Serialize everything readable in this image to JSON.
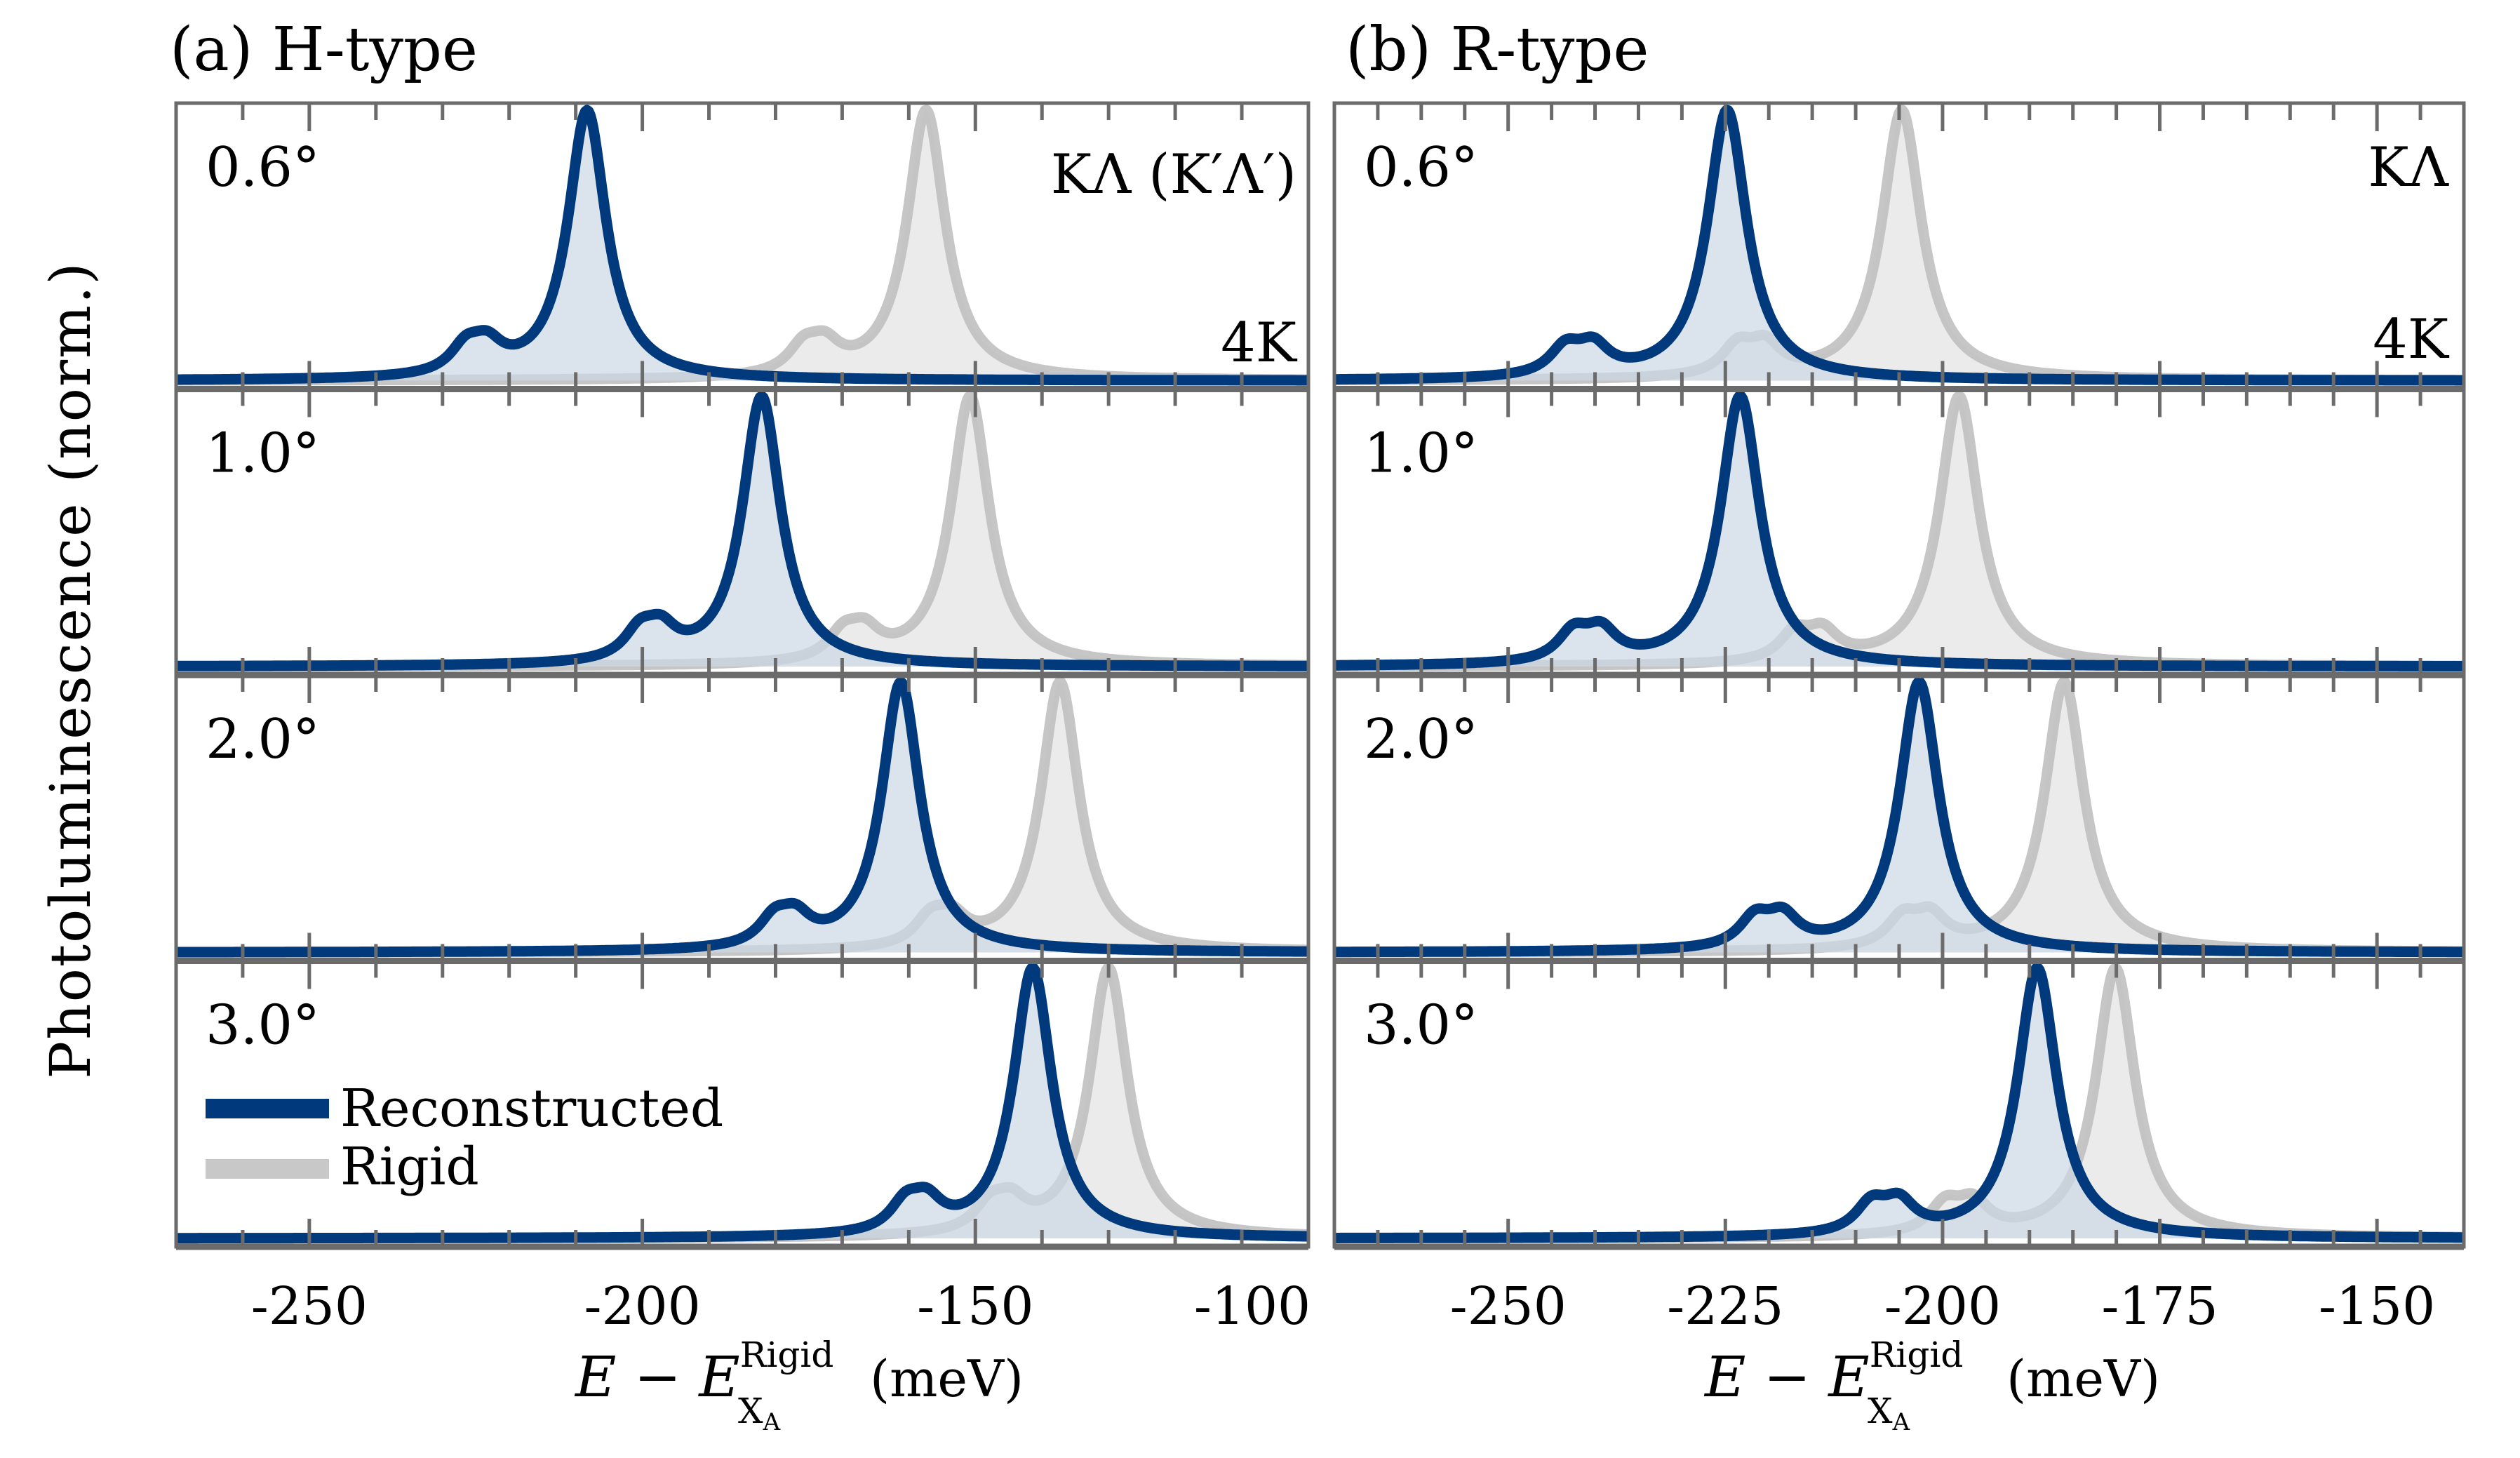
{
  "figure": {
    "ylabel": "Photoluminescence (norm.)",
    "xlabel": {
      "main": "E − E",
      "superscript": "Rigid",
      "subscript": "X",
      "subsubscript": "A",
      "unit": "(meV)"
    },
    "colors": {
      "reconstructed_line": "#003a7d",
      "reconstructed_fill": "#ccd8e5",
      "rigid_line": "#c0c0c0",
      "rigid_fill": "#e8e8e8",
      "frame": "#6b6b6b"
    },
    "legend": {
      "items": [
        {
          "label": "Reconstructed",
          "color": "#003a7d"
        },
        {
          "label": "Rigid",
          "color": "#c8c8c8"
        }
      ],
      "placement": "bottom-left of panel (a), 3.0° row"
    }
  },
  "chart_data": [
    {
      "type": "line",
      "panel": "a",
      "title": "(a) H-type",
      "corner_label_top": "KΛ (K′Λ′)",
      "corner_label_bottom": "4K",
      "xlabel": "E − E_XA^Rigid (meV)",
      "ylabel": "Photoluminescence (norm.)",
      "xlim": [
        -270,
        -100
      ],
      "ylim": [
        0,
        1
      ],
      "xticks_major": [
        -250,
        -200,
        -150,
        -100
      ],
      "xtick_labels": [
        "-250",
        "-200",
        "-150",
        "-100"
      ],
      "xticks_minor_step": 10,
      "grid": false,
      "rows": [
        {
          "angle": "0.6°",
          "reconstructed": {
            "peak": -208.3,
            "shoulder": -224.9,
            "shoulder_height": 0.17
          },
          "rigid": {
            "peak": -157.4,
            "shoulder": -174.2,
            "shoulder_height": 0.17
          }
        },
        {
          "angle": "1.0°",
          "reconstructed": {
            "peak": -182.1,
            "shoulder": -198.8,
            "shoulder_height": 0.18
          },
          "rigid": {
            "peak": -150.8,
            "shoulder": -168.2,
            "shoulder_height": 0.17
          }
        },
        {
          "angle": "2.0°",
          "reconstructed": {
            "peak": -161.2,
            "shoulder": -178.6,
            "shoulder_height": 0.17
          },
          "rigid": {
            "peak": -137.3,
            "shoulder": -155.2,
            "shoulder_height": 0.17
          }
        },
        {
          "angle": "3.0°",
          "reconstructed": {
            "peak": -141.4,
            "shoulder": -158.9,
            "shoulder_height": 0.18
          },
          "rigid": {
            "peak": -130.0,
            "shoulder": -146.2,
            "shoulder_height": 0.17
          }
        }
      ],
      "fwhm_meV": 7
    },
    {
      "type": "line",
      "panel": "b",
      "title": "(b) R-type",
      "corner_label_top": "KΛ",
      "corner_label_bottom": "4K",
      "xlabel": "E − E_XA^Rigid (meV)",
      "ylabel": "Photoluminescence (norm.)",
      "xlim": [
        -270,
        -140
      ],
      "ylim": [
        0,
        1
      ],
      "xticks_major": [
        -250,
        -225,
        -200,
        -175,
        -150
      ],
      "xtick_labels": [
        "-250",
        "-225",
        "-200",
        "-175",
        "-150"
      ],
      "xticks_minor_step": 5,
      "grid": false,
      "rows": [
        {
          "angle": "0.6°",
          "reconstructed": {
            "peak": -224.8,
            "shoulder": -241.8,
            "shoulder_height": 0.18
          },
          "rigid": {
            "peak": -204.7,
            "shoulder": -222.0,
            "shoulder_height": 0.19
          }
        },
        {
          "angle": "1.0°",
          "reconstructed": {
            "peak": -223.3,
            "shoulder": -240.9,
            "shoulder_height": 0.19
          },
          "rigid": {
            "peak": -198.1,
            "shoulder": -215.4,
            "shoulder_height": 0.18
          }
        },
        {
          "angle": "2.0°",
          "reconstructed": {
            "peak": -202.7,
            "shoulder": -220.0,
            "shoulder_height": 0.19
          },
          "rigid": {
            "peak": -186.0,
            "shoulder": -203.0,
            "shoulder_height": 0.19
          }
        },
        {
          "angle": "3.0°",
          "reconstructed": {
            "peak": -189.1,
            "shoulder": -206.6,
            "shoulder_height": 0.19
          },
          "rigid": {
            "peak": -180.1,
            "shoulder": -198.1,
            "shoulder_height": 0.19
          }
        }
      ],
      "fwhm_meV": 5.5
    }
  ]
}
